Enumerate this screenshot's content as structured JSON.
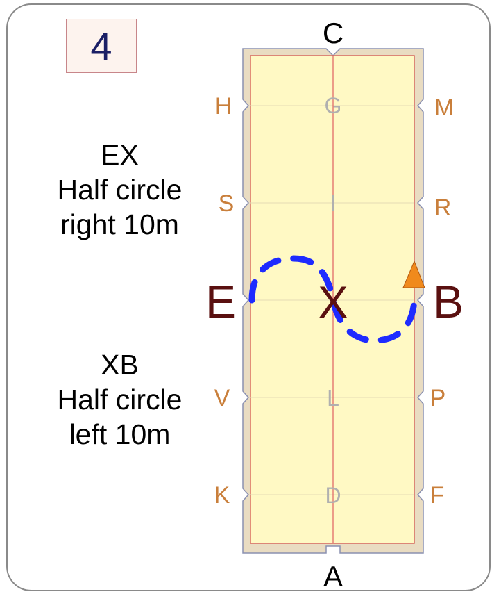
{
  "test_number": "4",
  "movements": [
    {
      "lines": [
        "EX",
        "Half circle",
        "right 10m"
      ]
    },
    {
      "lines": [
        "XB",
        "Half circle",
        "left 10m"
      ]
    }
  ],
  "arena_letters": {
    "top": "C",
    "bottom": "A",
    "left": [
      "H",
      "S",
      "E",
      "V",
      "K"
    ],
    "right": [
      "M",
      "R",
      "B",
      "P",
      "F"
    ],
    "center": [
      "G",
      "I",
      "X",
      "L",
      "D"
    ]
  },
  "colors": {
    "arena_fill": "#fff9c4",
    "arena_border": "#d9c9a8",
    "centerline": "#e06060",
    "path": "#1e2bff",
    "direction_marker": "#f08a1c",
    "corner_letters": "#c97f3b",
    "big_letters": "#5a1010"
  },
  "icons": {
    "direction_marker": "triangle-up"
  }
}
